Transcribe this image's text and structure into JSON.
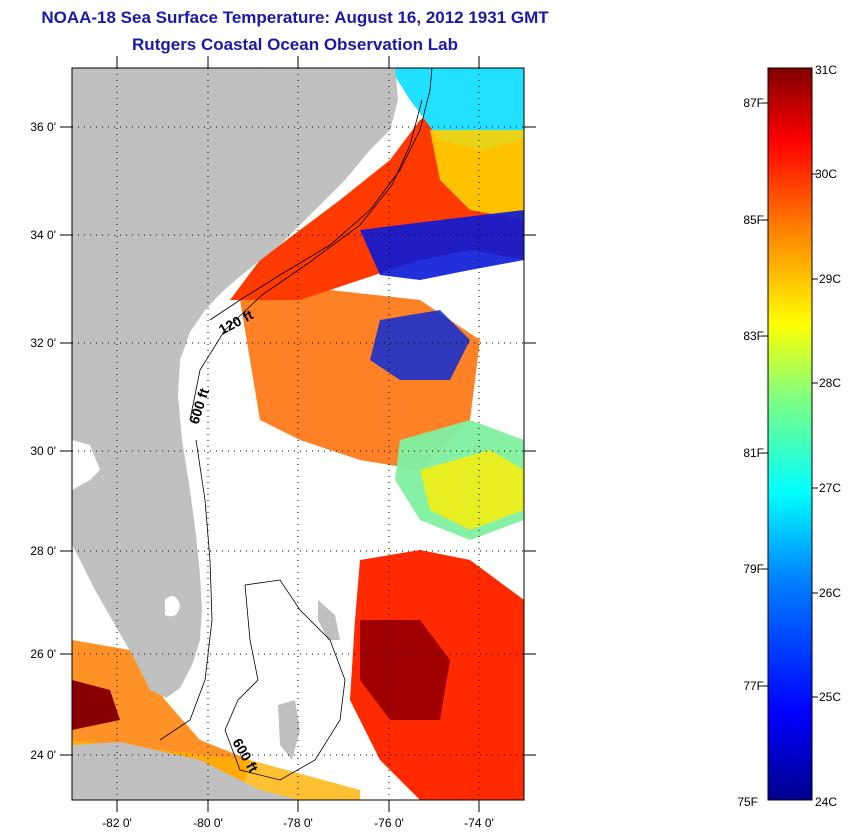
{
  "title": "NOAA-18 Sea Surface Temperature:  August 16, 2012 1931 GMT",
  "subtitle": "Rutgers Coastal Ocean Observation Lab",
  "map": {
    "lat_ticks": [
      "36 0'",
      "34 0'",
      "32 0'",
      "30 0'",
      "28 0'",
      "26 0'",
      "24 0'"
    ],
    "lon_ticks": [
      "-82 0'",
      "-80 0'",
      "-78 0'",
      "-76 0'",
      "-74 0'"
    ],
    "lat_range": [
      23,
      37
    ],
    "lon_range": [
      -83,
      -73
    ],
    "contour_labels": [
      "120 ft",
      "600 ft",
      "600 ft"
    ],
    "land_color": "#c0c0c0",
    "no_data_color": "#ffffff"
  },
  "colorbar": {
    "celsius_ticks": [
      "31C",
      "30C",
      "29C",
      "28C",
      "27C",
      "26C",
      "25C",
      "24C"
    ],
    "fahrenheit_ticks": [
      "87F",
      "85F",
      "83F",
      "81F",
      "79F",
      "77F",
      "75F"
    ],
    "range_c": [
      24,
      31
    ],
    "colors": [
      "#00008f",
      "#0000ff",
      "#0080ff",
      "#00ffff",
      "#80ff80",
      "#ffff00",
      "#ff8000",
      "#ff0000",
      "#800000"
    ]
  }
}
